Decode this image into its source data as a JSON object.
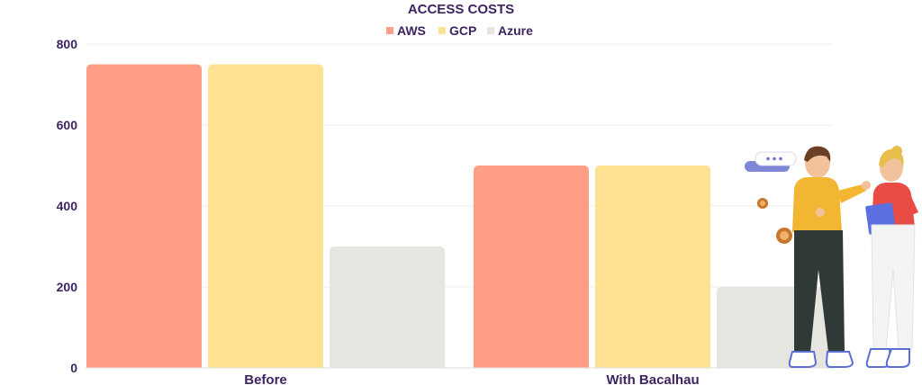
{
  "chart_data": {
    "type": "bar",
    "title": "ACCESS COSTS",
    "categories": [
      "Before",
      "With Bacalhau"
    ],
    "series": [
      {
        "name": "AWS",
        "color": "#ff9e86",
        "values": [
          750,
          500
        ]
      },
      {
        "name": "GCP",
        "color": "#ffe291",
        "values": [
          750,
          500
        ]
      },
      {
        "name": "Azure",
        "color": "#e6e5e0",
        "values": [
          300,
          200
        ]
      }
    ],
    "ylim": [
      0,
      800
    ],
    "yticks": [
      "0",
      "200",
      "400",
      "600",
      "800"
    ],
    "grid": true,
    "legend": "top-center",
    "xlabel": "",
    "ylabel": ""
  },
  "illustration": {
    "description_icons": [
      "chat-bubble-icon",
      "coin-icon",
      "person-icon"
    ]
  }
}
